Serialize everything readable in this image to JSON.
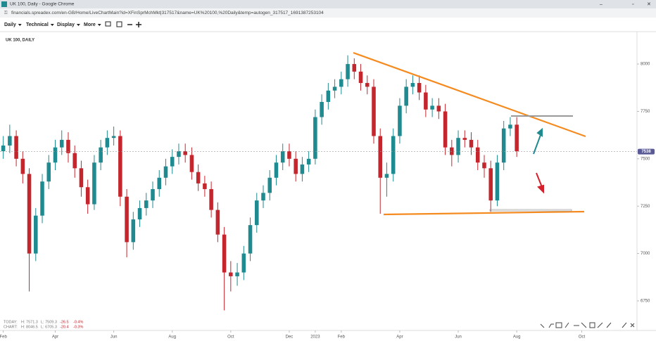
{
  "browser": {
    "tab_title": "UK 100, Daily - Google Chrome",
    "url": "financials.spreadex.com/en-GB/Home/LiveChartMain?id=XFinSprMchMkt|317517&name=UK%20100,%20Daily&temp=autogen_317517_1691387253104"
  },
  "toolbar": {
    "items": [
      "Daily",
      "Technical",
      "Display",
      "More"
    ]
  },
  "readout": {
    "today": [
      "TODAY:",
      "H: 7571.3",
      "L: 7509.3",
      "-26.5",
      "-0.4%"
    ],
    "chart": [
      "CHART:",
      "H: 8046.5",
      "L: 6705.3",
      "-20.4",
      "-0.3%"
    ]
  },
  "chart_data": {
    "type": "candlestick",
    "title": "UK 100, DAILY",
    "categories": [
      "Feb",
      null,
      null,
      null,
      null,
      null,
      null,
      null,
      "Apr",
      null,
      null,
      null,
      null,
      null,
      null,
      null,
      null,
      "Jun",
      null,
      null,
      null,
      null,
      null,
      null,
      null,
      null,
      "Aug",
      null,
      null,
      null,
      null,
      null,
      null,
      null,
      null,
      "Oct",
      null,
      null,
      null,
      null,
      null,
      null,
      null,
      null,
      "Dec",
      null,
      null,
      null,
      "2023",
      null,
      null,
      null,
      "Feb",
      null,
      null,
      null,
      null,
      null,
      null,
      null,
      null,
      "Apr",
      null,
      null,
      null,
      null,
      null,
      null,
      null,
      null,
      "Jun",
      null,
      null,
      null,
      null,
      null,
      null,
      null,
      null,
      "Aug",
      null,
      null,
      null,
      null,
      null,
      null,
      null,
      null,
      null,
      "Oct",
      null,
      null,
      null,
      null,
      null,
      null,
      null,
      null
    ],
    "open": [
      7540,
      7570,
      7620,
      7500,
      7420,
      7000,
      7200,
      7380,
      7480,
      7560,
      7600,
      7530,
      7450,
      7350,
      7260,
      7480,
      7560,
      7610,
      7620,
      7300,
      7060,
      7180,
      7240,
      7280,
      7340,
      7400,
      7460,
      7510,
      7540,
      7520,
      7430,
      7370,
      7340,
      7230,
      7100,
      6900,
      6880,
      6900,
      7000,
      7150,
      7280,
      7320,
      7400,
      7480,
      7540,
      7500,
      7420,
      7470,
      7500,
      7720,
      7800,
      7860,
      7880,
      7920,
      8000,
      7960,
      7900,
      7880,
      7620,
      7400,
      7420,
      7620,
      7780,
      7880,
      7900,
      7850,
      7760,
      7780,
      7750,
      7560,
      7520,
      7610,
      7600,
      7560,
      7480,
      7450,
      7280,
      7480,
      7660,
      7680,
      null,
      null,
      null,
      null,
      null,
      null,
      null,
      null,
      null,
      null,
      null,
      null,
      null,
      null,
      null,
      null,
      null,
      null
    ],
    "high": [
      7620,
      7680,
      7650,
      7540,
      7450,
      7240,
      7420,
      7520,
      7600,
      7650,
      7640,
      7570,
      7490,
      7390,
      7520,
      7600,
      7650,
      7670,
      7650,
      7340,
      7220,
      7280,
      7320,
      7380,
      7440,
      7500,
      7550,
      7580,
      7580,
      7560,
      7470,
      7410,
      7380,
      7270,
      7140,
      6960,
      6950,
      7040,
      7190,
      7320,
      7360,
      7440,
      7520,
      7580,
      7580,
      7540,
      7510,
      7540,
      7760,
      7840,
      7900,
      7920,
      7960,
      8046,
      8030,
      8000,
      7940,
      7920,
      7660,
      7480,
      7660,
      7820,
      7920,
      7940,
      7940,
      7890,
      7820,
      7820,
      7790,
      7600,
      7650,
      7650,
      7640,
      7600,
      7520,
      7490,
      7520,
      7700,
      7720,
      7720,
      null,
      null,
      null,
      null,
      null,
      null,
      null,
      null,
      null,
      null,
      null,
      null,
      null,
      null,
      null,
      null,
      null,
      null
    ],
    "low": [
      7500,
      7530,
      7460,
      7370,
      6800,
      6960,
      7160,
      7340,
      7440,
      7520,
      7480,
      7400,
      7300,
      7210,
      7230,
      7440,
      7520,
      7570,
      7250,
      6980,
      7020,
      7140,
      7200,
      7240,
      7300,
      7360,
      7420,
      7470,
      7480,
      7390,
      7330,
      7300,
      7190,
      7060,
      6700,
      6800,
      6830,
      6860,
      6960,
      7110,
      7240,
      7280,
      7360,
      7440,
      7460,
      7380,
      7380,
      7430,
      7470,
      7680,
      7760,
      7820,
      7840,
      7880,
      7920,
      7860,
      7840,
      7580,
      7210,
      7300,
      7380,
      7580,
      7740,
      7840,
      7810,
      7720,
      7720,
      7710,
      7520,
      7460,
      7480,
      7560,
      7520,
      7440,
      7400,
      7220,
      7250,
      7440,
      7620,
      7510,
      null,
      null,
      null,
      null,
      null,
      null,
      null,
      null,
      null,
      null,
      null,
      null,
      null,
      null,
      null,
      null,
      null,
      null
    ],
    "close": [
      7570,
      7620,
      7500,
      7420,
      7000,
      7200,
      7380,
      7480,
      7560,
      7600,
      7530,
      7450,
      7350,
      7260,
      7480,
      7560,
      7610,
      7620,
      7300,
      7060,
      7180,
      7240,
      7280,
      7340,
      7400,
      7460,
      7510,
      7540,
      7520,
      7430,
      7370,
      7340,
      7230,
      7100,
      6900,
      6880,
      6900,
      7000,
      7150,
      7280,
      7320,
      7400,
      7480,
      7540,
      7500,
      7420,
      7470,
      7500,
      7720,
      7800,
      7860,
      7880,
      7920,
      8000,
      7960,
      7900,
      7880,
      7620,
      7400,
      7420,
      7620,
      7780,
      7880,
      7900,
      7850,
      7760,
      7780,
      7750,
      7560,
      7520,
      7610,
      7600,
      7560,
      7480,
      7450,
      7280,
      7480,
      7660,
      7680,
      7540,
      null,
      null,
      null,
      null,
      null,
      null,
      null,
      null,
      null,
      null,
      null,
      null,
      null,
      null,
      null,
      null,
      null,
      null
    ],
    "up_color": "#1f8a8f",
    "down_color": "#c4262e",
    "ylim": [
      6594,
      8171
    ],
    "yticks": [
      6750,
      7000,
      7250,
      7500,
      7750,
      8000
    ],
    "grid": false,
    "last_price": 7538
  }
}
